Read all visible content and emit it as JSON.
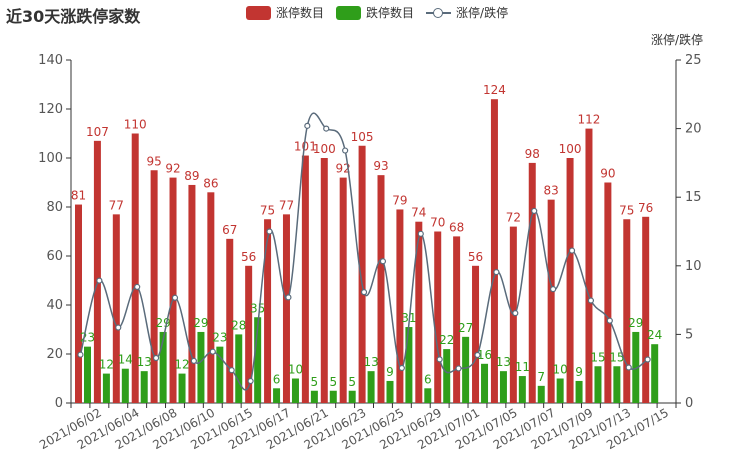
{
  "title": "近30天涨跌停家数",
  "legend": {
    "items": [
      {
        "label": "涨停数目",
        "color": "#c23531"
      },
      {
        "label": "跌停数目",
        "color": "#2f9e1a"
      },
      {
        "label": "涨停/跌停",
        "color": "#5a6b7b"
      }
    ]
  },
  "chart_data": {
    "type": "bar",
    "title": "近30天涨跌停家数",
    "categories": [
      "2021/06/01",
      "2021/06/02",
      "2021/06/03",
      "2021/06/04",
      "2021/06/07",
      "2021/06/08",
      "2021/06/09",
      "2021/06/10",
      "2021/06/11",
      "2021/06/15",
      "2021/06/16",
      "2021/06/17",
      "2021/06/18",
      "2021/06/21",
      "2021/06/22",
      "2021/06/23",
      "2021/06/24",
      "2021/06/25",
      "2021/06/28",
      "2021/06/29",
      "2021/06/30",
      "2021/07/01",
      "2021/07/02",
      "2021/07/05",
      "2021/07/06",
      "2021/07/07",
      "2021/07/08",
      "2021/07/09",
      "2021/07/12",
      "2021/07/13",
      "2021/07/14",
      "2021/07/15"
    ],
    "x_tick_labels": [
      "2021/06/02",
      "2021/06/04",
      "2021/06/08",
      "2021/06/10",
      "2021/06/15",
      "2021/06/17",
      "2021/06/21",
      "2021/06/23",
      "2021/06/25",
      "2021/06/29",
      "2021/07/01",
      "2021/07/05",
      "2021/07/07",
      "2021/07/09",
      "2021/07/13",
      "2021/07/15"
    ],
    "series": [
      {
        "name": "涨停数目",
        "type": "bar",
        "color": "#c23531",
        "values": [
          81,
          107,
          77,
          110,
          95,
          92,
          89,
          86,
          67,
          56,
          75,
          77,
          101,
          100,
          92,
          105,
          93,
          79,
          74,
          70,
          68,
          56,
          124,
          72,
          98,
          83,
          100,
          112,
          90,
          75,
          76,
          null
        ]
      },
      {
        "name": "跌停数目",
        "type": "bar",
        "color": "#2f9e1a",
        "values": [
          23,
          12,
          14,
          13,
          29,
          12,
          29,
          23,
          28,
          35,
          6,
          10,
          5,
          5,
          5,
          13,
          9,
          31,
          6,
          22,
          27,
          16,
          13,
          11,
          7,
          10,
          9,
          15,
          15,
          29,
          24,
          null
        ]
      },
      {
        "name": "涨停/跌停",
        "type": "line",
        "axis": "right",
        "color": "#5a6b7b",
        "values": [
          3.52,
          8.92,
          5.5,
          8.46,
          3.28,
          7.67,
          3.07,
          3.74,
          2.39,
          1.6,
          12.5,
          7.7,
          20.2,
          20.0,
          18.4,
          8.08,
          10.33,
          2.55,
          12.33,
          3.18,
          2.52,
          3.5,
          9.54,
          6.55,
          14.0,
          8.3,
          11.11,
          7.47,
          6.0,
          2.59,
          3.17,
          null
        ]
      }
    ],
    "y_left": {
      "ylim": [
        0,
        140
      ],
      "ticks": [
        0,
        20,
        40,
        60,
        80,
        100,
        120,
        140
      ]
    },
    "y_right": {
      "label": "涨停/跌停",
      "ylim": [
        0,
        25
      ],
      "ticks": [
        0,
        5,
        10,
        15,
        20,
        25
      ]
    },
    "grid": false,
    "legend_position": "top-center"
  }
}
